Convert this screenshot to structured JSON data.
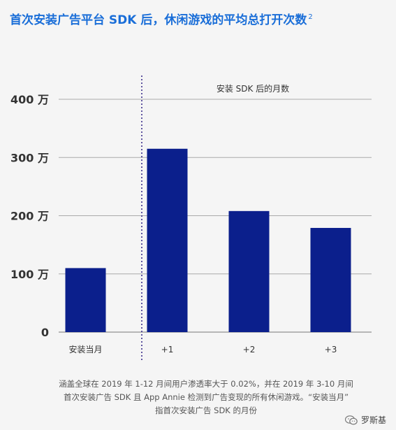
{
  "title": "首次安装广告平台 SDK 后，休闲游戏的平均总打开次数",
  "title_footnote_marker": "2",
  "chart_data": {
    "type": "bar",
    "categories": [
      "安装当月",
      "+1",
      "+2",
      "+3"
    ],
    "values": [
      1100000,
      3150000,
      2080000,
      1790000
    ],
    "ylim": [
      0,
      4000000
    ],
    "yticks": [
      {
        "value": 0,
        "label": "0"
      },
      {
        "value": 1000000,
        "label": "100 万"
      },
      {
        "value": 2000000,
        "label": "200 万"
      },
      {
        "value": 3000000,
        "label": "300 万"
      },
      {
        "value": 4000000,
        "label": "400 万"
      }
    ],
    "annotation": "安装 SDK 后的月数",
    "grid": true,
    "bar_color": "#0b1f8c"
  },
  "footnote": {
    "line1": "涵盖全球在 2019 年 1-12 月间用户渗透率大于 0.02%，并在 2019 年 3-10 月间",
    "line2": "首次安装广告 SDK 且 App Annie 检测到广告变现的所有休闲游戏。“安装当月”",
    "line3": "指首次安装广告 SDK 的月份"
  },
  "watermark": {
    "icon": "wechat-icon",
    "text": "罗斯基"
  }
}
